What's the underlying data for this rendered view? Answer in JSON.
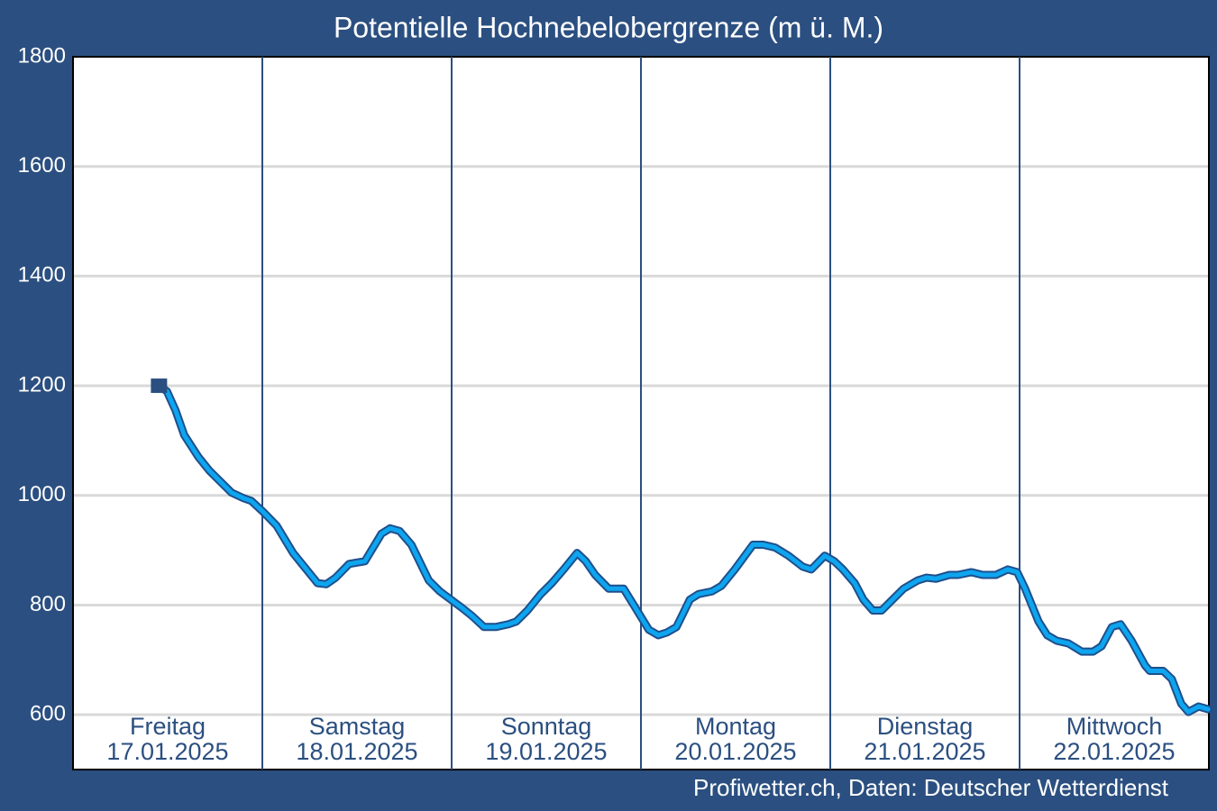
{
  "chart_data": {
    "type": "line",
    "title": "Potentielle Hochnebelobergrenze (m ü. M.)",
    "source": "Profiwetter.ch, Daten: Deutscher Wetterdienst",
    "days": [
      {
        "name": "Freitag",
        "date": "17.01.2025"
      },
      {
        "name": "Samstag",
        "date": "18.01.2025"
      },
      {
        "name": "Sonntag",
        "date": "19.01.2025"
      },
      {
        "name": "Montag",
        "date": "20.01.2025"
      },
      {
        "name": "Dienstag",
        "date": "21.01.2025"
      },
      {
        "name": "Mittwoch",
        "date": "22.01.2025"
      }
    ],
    "xlim": [
      0,
      144
    ],
    "xticks": [
      24,
      48,
      72,
      96,
      120
    ],
    "ylim": [
      500,
      1800
    ],
    "yticks": [
      600,
      800,
      1000,
      1200,
      1400,
      1600,
      1800
    ],
    "grid": true,
    "series": [
      {
        "color": "#0ea5ef",
        "outline_color": "#1f4f8c",
        "marker_color": "#2b4f80",
        "x": [
          10.9,
          11.9,
          13.0,
          14.1,
          15.9,
          17.3,
          18.7,
          20.1,
          21.6,
          22.6,
          24.1,
          25.8,
          27.9,
          29.3,
          31.0,
          32.1,
          33.3,
          35.0,
          37.0,
          39.1,
          40.2,
          41.4,
          42.9,
          45.1,
          46.5,
          47.9,
          49.3,
          50.6,
          52.1,
          53.6,
          55.2,
          56.2,
          57.6,
          59.3,
          60.7,
          62.2,
          63.9,
          65.0,
          66.2,
          67.9,
          69.8,
          71.3,
          73.0,
          74.2,
          75.3,
          76.5,
          78.2,
          79.3,
          81.0,
          82.2,
          83.9,
          86.2,
          87.5,
          89.0,
          90.7,
          92.5,
          93.6,
          95.3,
          96.5,
          97.6,
          99.1,
          100.2,
          101.4,
          102.5,
          103.9,
          105.3,
          107.1,
          108.2,
          109.4,
          111.1,
          112.2,
          113.9,
          115.3,
          117.0,
          118.5,
          119.7,
          120.7,
          122.4,
          123.5,
          124.7,
          126.2,
          127.9,
          129.3,
          130.4,
          131.7,
          132.8,
          134.2,
          135.9,
          136.5,
          138.2,
          139.3,
          140.5,
          141.4,
          142.7,
          143.9
        ],
        "values": [
          1200,
          1190,
          1155,
          1110,
          1070,
          1045,
          1025,
          1005,
          995,
          990,
          970,
          945,
          895,
          870,
          840,
          838,
          850,
          875,
          880,
          930,
          940,
          935,
          910,
          845,
          825,
          810,
          795,
          780,
          760,
          760,
          765,
          770,
          790,
          820,
          840,
          865,
          895,
          880,
          855,
          830,
          830,
          795,
          755,
          745,
          750,
          760,
          810,
          820,
          825,
          835,
          865,
          910,
          910,
          905,
          890,
          870,
          865,
          890,
          880,
          865,
          840,
          810,
          790,
          790,
          810,
          830,
          845,
          850,
          848,
          855,
          855,
          860,
          855,
          855,
          865,
          860,
          830,
          770,
          745,
          735,
          730,
          715,
          715,
          725,
          760,
          765,
          735,
          690,
          680,
          680,
          665,
          620,
          605,
          615,
          610
        ]
      }
    ]
  }
}
